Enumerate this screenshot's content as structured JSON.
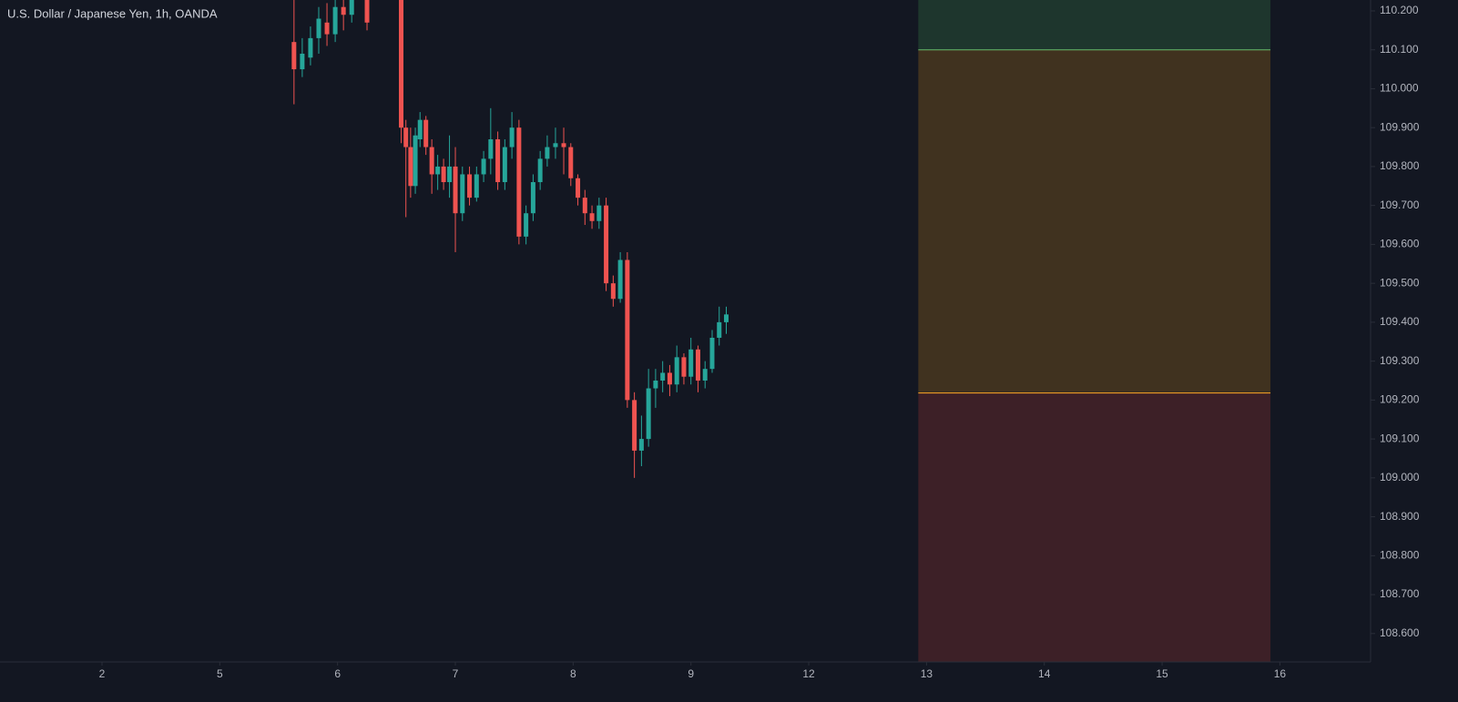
{
  "chart_data": {
    "type": "candlestick",
    "title": "U.S. Dollar / Japanese Yen, 1h, OANDA",
    "x": [
      1.63,
      1.7,
      1.77,
      1.84,
      1.91,
      1.98,
      2.05,
      2.12,
      2.25,
      2.54,
      2.58,
      2.62,
      2.66,
      2.7,
      2.75,
      2.8,
      2.85,
      2.9,
      2.95,
      3.0,
      3.06,
      3.12,
      3.18,
      3.24,
      3.3,
      3.36,
      3.42,
      3.48,
      3.54,
      3.6,
      3.66,
      3.72,
      3.78,
      3.85,
      3.92,
      3.98,
      4.04,
      4.1,
      4.16,
      4.22,
      4.28,
      4.34,
      4.4,
      4.46,
      4.52,
      4.58,
      4.64,
      4.7,
      4.76,
      4.82,
      4.88,
      4.94,
      5.0,
      5.06,
      5.12,
      5.18,
      5.24,
      5.3
    ],
    "open": [
      110.12,
      110.05,
      110.08,
      110.13,
      110.17,
      110.14,
      110.21,
      110.19,
      110.28,
      110.3,
      109.9,
      109.85,
      109.75,
      109.87,
      109.92,
      109.85,
      109.78,
      109.8,
      109.76,
      109.8,
      109.68,
      109.78,
      109.72,
      109.78,
      109.82,
      109.87,
      109.76,
      109.85,
      109.9,
      109.62,
      109.68,
      109.76,
      109.82,
      109.85,
      109.86,
      109.85,
      109.77,
      109.72,
      109.68,
      109.66,
      109.7,
      109.5,
      109.46,
      109.56,
      109.2,
      109.07,
      109.1,
      109.23,
      109.25,
      109.27,
      109.24,
      109.31,
      109.26,
      109.33,
      109.25,
      109.28,
      109.36,
      109.4
    ],
    "high": [
      110.25,
      110.13,
      110.16,
      110.21,
      110.22,
      110.23,
      110.25,
      110.26,
      110.32,
      110.35,
      109.92,
      109.9,
      109.9,
      109.94,
      109.93,
      109.87,
      109.83,
      109.82,
      109.88,
      109.85,
      109.8,
      109.8,
      109.8,
      109.84,
      109.95,
      109.89,
      109.87,
      109.94,
      109.92,
      109.7,
      109.78,
      109.84,
      109.88,
      109.9,
      109.9,
      109.86,
      109.78,
      109.74,
      109.7,
      109.72,
      109.72,
      109.52,
      109.58,
      109.58,
      109.22,
      109.16,
      109.28,
      109.28,
      109.3,
      109.29,
      109.34,
      109.32,
      109.36,
      109.34,
      109.3,
      109.38,
      109.44,
      109.44
    ],
    "low": [
      109.96,
      110.03,
      110.06,
      110.09,
      110.11,
      110.12,
      110.15,
      110.17,
      110.15,
      109.86,
      109.67,
      109.72,
      109.73,
      109.85,
      109.83,
      109.73,
      109.74,
      109.74,
      109.72,
      109.58,
      109.66,
      109.7,
      109.71,
      109.76,
      109.78,
      109.74,
      109.74,
      109.82,
      109.6,
      109.6,
      109.66,
      109.74,
      109.8,
      109.82,
      109.78,
      109.75,
      109.7,
      109.65,
      109.64,
      109.64,
      109.48,
      109.44,
      109.45,
      109.18,
      109.0,
      109.03,
      109.08,
      109.18,
      109.22,
      109.21,
      109.22,
      109.24,
      109.24,
      109.22,
      109.23,
      109.27,
      109.34,
      109.37
    ],
    "close": [
      110.05,
      110.09,
      110.13,
      110.18,
      110.14,
      110.21,
      110.19,
      110.24,
      110.17,
      109.9,
      109.85,
      109.75,
      109.88,
      109.92,
      109.85,
      109.78,
      109.8,
      109.76,
      109.8,
      109.68,
      109.78,
      109.72,
      109.78,
      109.82,
      109.87,
      109.76,
      109.85,
      109.9,
      109.62,
      109.68,
      109.76,
      109.82,
      109.85,
      109.86,
      109.85,
      109.77,
      109.72,
      109.68,
      109.66,
      109.7,
      109.5,
      109.46,
      109.56,
      109.2,
      109.07,
      109.1,
      109.23,
      109.25,
      109.27,
      109.24,
      109.31,
      109.26,
      109.33,
      109.25,
      109.28,
      109.36,
      109.4,
      109.42
    ],
    "up_color": "#26a69a",
    "down_color": "#ef5350",
    "zones": [
      {
        "x": [
          6.93,
          9.92
        ],
        "y": [
          110.1,
          110.3
        ],
        "color": "#1e362d"
      },
      {
        "x": [
          6.93,
          9.92
        ],
        "y": [
          109.218,
          110.1
        ],
        "color": "#40321f"
      },
      {
        "x": [
          6.93,
          9.92
        ],
        "y": [
          108.4,
          109.218
        ],
        "color": "#3d2027"
      }
    ],
    "levels": [
      {
        "x": [
          6.93,
          9.92
        ],
        "value": 110.1,
        "color": "#66bb6a"
      },
      {
        "x": [
          6.93,
          9.92
        ],
        "value": 109.218,
        "color": "#ffa726"
      }
    ],
    "xlim": [
      -0.866,
      10.77
    ],
    "xticks": [
      {
        "value": 0,
        "label": "2"
      },
      {
        "value": 1,
        "label": "5"
      },
      {
        "value": 2,
        "label": "6"
      },
      {
        "value": 3,
        "label": "7"
      },
      {
        "value": 4,
        "label": "8"
      },
      {
        "value": 5,
        "label": "9"
      },
      {
        "value": 6,
        "label": "12"
      },
      {
        "value": 7,
        "label": "13"
      },
      {
        "value": 8,
        "label": "14"
      },
      {
        "value": 9,
        "label": "15"
      },
      {
        "value": 10,
        "label": "16"
      }
    ],
    "ylim": [
      108.527,
      110.228
    ],
    "yticks": [
      {
        "value": 110.2,
        "label": "110.200"
      },
      {
        "value": 110.1,
        "label": "110.100"
      },
      {
        "value": 110,
        "label": "110.000"
      },
      {
        "value": 109.9,
        "label": "109.900"
      },
      {
        "value": 109.8,
        "label": "109.800"
      },
      {
        "value": 109.7,
        "label": "109.700"
      },
      {
        "value": 109.6,
        "label": "109.600"
      },
      {
        "value": 109.5,
        "label": "109.500"
      },
      {
        "value": 109.4,
        "label": "109.400"
      },
      {
        "value": 109.3,
        "label": "109.300"
      },
      {
        "value": 109.2,
        "label": "109.200"
      },
      {
        "value": 109.1,
        "label": "109.100"
      },
      {
        "value": 109,
        "label": "109.000"
      },
      {
        "value": 108.9,
        "label": "108.900"
      },
      {
        "value": 108.8,
        "label": "108.800"
      },
      {
        "value": 108.7,
        "label": "108.700"
      },
      {
        "value": 108.6,
        "label": "108.600"
      }
    ]
  }
}
